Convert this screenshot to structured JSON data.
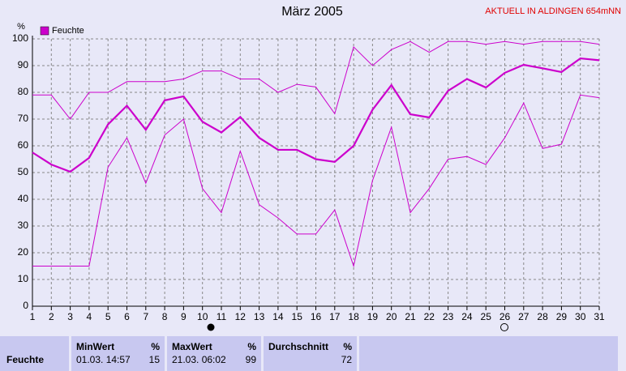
{
  "chart_data": {
    "type": "line",
    "title": "März 2005",
    "subtitle": "AKTUELL IN ALDINGEN 654mNN",
    "y_unit": "%",
    "x": [
      1,
      2,
      3,
      4,
      5,
      6,
      7,
      8,
      9,
      10,
      11,
      12,
      13,
      14,
      15,
      16,
      17,
      18,
      19,
      20,
      21,
      22,
      23,
      24,
      25,
      26,
      27,
      28,
      29,
      30,
      31
    ],
    "xlim": [
      1,
      31
    ],
    "xticks": [
      1,
      2,
      3,
      4,
      5,
      6,
      7,
      8,
      9,
      10,
      11,
      12,
      13,
      14,
      15,
      16,
      17,
      18,
      19,
      20,
      21,
      22,
      23,
      24,
      25,
      26,
      27,
      28,
      29,
      30,
      31
    ],
    "ylim": [
      0,
      100
    ],
    "yticks": [
      0,
      10,
      20,
      30,
      40,
      50,
      60,
      70,
      80,
      90,
      100
    ],
    "grid": true,
    "series": [
      {
        "name": "Feuchte",
        "color": "#cc00cc",
        "values": [
          57.5,
          53,
          50.3,
          55.5,
          68,
          75,
          66,
          77,
          78.5,
          69,
          65,
          70.8,
          63,
          58.5,
          58.5,
          55,
          54,
          60,
          73.5,
          82.7,
          71.8,
          70.6,
          80.6,
          85,
          81.8,
          87.3,
          90.3,
          89,
          87.6,
          92.7,
          92
        ]
      },
      {
        "color": "#cc00cc",
        "values": [
          79,
          79,
          70,
          80,
          80,
          84,
          84,
          84,
          85,
          88,
          88,
          85,
          85,
          80,
          83,
          82,
          72,
          97,
          90,
          96,
          99,
          95,
          99,
          99,
          98,
          99,
          98,
          99,
          99,
          99,
          98
        ]
      },
      {
        "color": "#cc00cc",
        "values": [
          15,
          15,
          15,
          15,
          52,
          63,
          46,
          64,
          70,
          44,
          35,
          58,
          38,
          33,
          27,
          27,
          36,
          15,
          47,
          67,
          35,
          44,
          55,
          56,
          53,
          63,
          76,
          59,
          60.6,
          79,
          78
        ]
      }
    ]
  },
  "table": {
    "headers": [
      [
        "MinWert",
        "%"
      ],
      [
        "MaxWert",
        "%"
      ],
      [
        "Durchschnitt",
        "%"
      ]
    ],
    "rows": [
      [
        "Feuchte",
        "01.03. 14:57",
        "15",
        "21.03. 06:02",
        "99",
        "72"
      ]
    ]
  }
}
